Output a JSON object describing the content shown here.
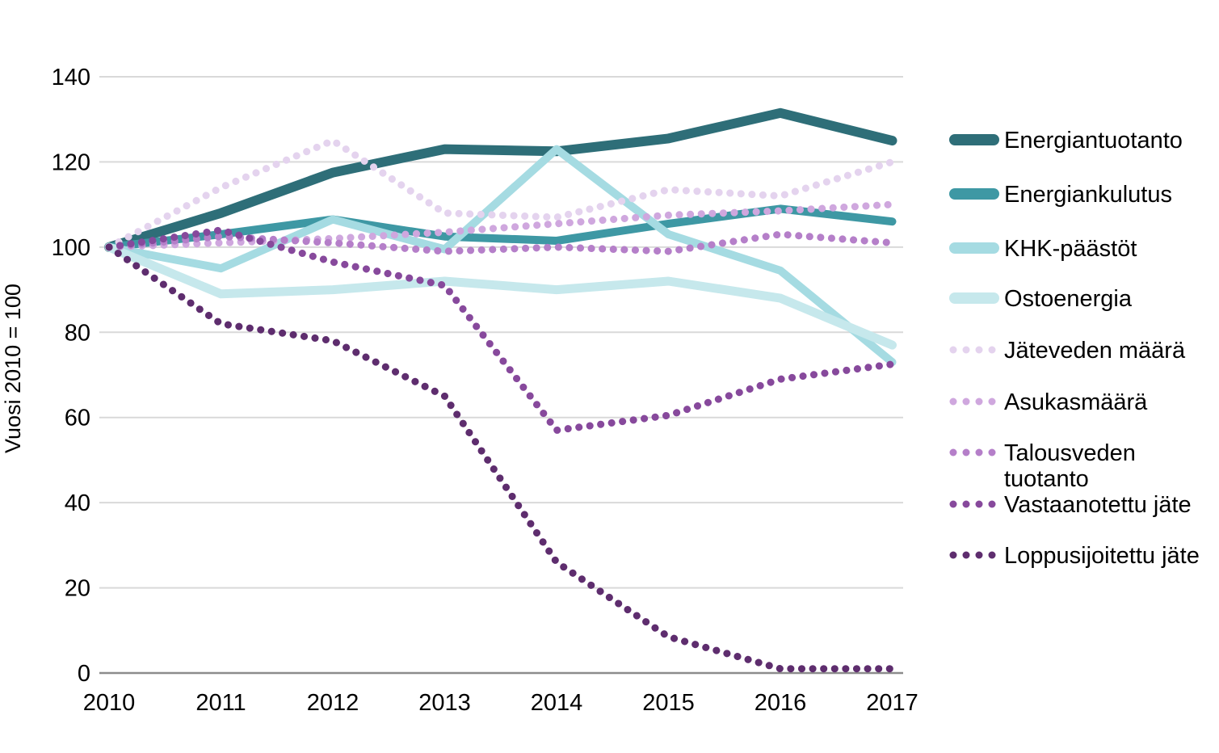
{
  "y_axis_title": "Vuosi 2010 = 100",
  "colors": {
    "gridline": "#d9d9d9",
    "axis_line": "#8c8c8c",
    "text": "#000000",
    "background": "#ffffff"
  },
  "chart_data": {
    "type": "line",
    "title": "",
    "xlabel": "",
    "ylabel": "Vuosi 2010 = 100",
    "categories": [
      "2010",
      "2011",
      "2012",
      "2013",
      "2014",
      "2015",
      "2016",
      "2017"
    ],
    "y_ticks": [
      0,
      20,
      40,
      60,
      80,
      100,
      120,
      140
    ],
    "ylim": [
      0,
      140
    ],
    "grid": true,
    "legend_position": "right",
    "series": [
      {
        "name": "Energiantuotanto",
        "color": "#2e6e78",
        "style": "solid",
        "width": 12,
        "values": [
          100,
          108,
          117.5,
          123,
          122.5,
          125.5,
          131.5,
          125
        ]
      },
      {
        "name": "Energiankulutus",
        "color": "#3e98a4",
        "style": "solid",
        "width": 10,
        "values": [
          100,
          103,
          106.5,
          102.5,
          101.5,
          105.5,
          109,
          106
        ]
      },
      {
        "name": "KHK-päästöt",
        "color": "#a5dbe2",
        "style": "solid",
        "width": 10,
        "values": [
          100,
          95,
          106.5,
          99.5,
          123,
          103,
          94.5,
          73
        ]
      },
      {
        "name": "Ostoenergia",
        "color": "#c6e8ec",
        "style": "solid",
        "width": 11,
        "values": [
          100,
          89,
          90,
          92,
          90,
          92,
          88,
          77
        ]
      },
      {
        "name": "Jäteveden määrä",
        "color": "#e4d3ee",
        "style": "dotted",
        "width": 9,
        "values": [
          100,
          114,
          125,
          108,
          107,
          113.5,
          112,
          120
        ]
      },
      {
        "name": "Asukasmäärä",
        "color": "#cfa7de",
        "style": "dotted",
        "width": 9,
        "values": [
          100,
          101,
          102,
          103.5,
          105.5,
          107.5,
          108.5,
          110
        ]
      },
      {
        "name": "Talousveden tuotanto",
        "color": "#b57fc9",
        "style": "dotted",
        "width": 9,
        "values": [
          100,
          102.5,
          101,
          99,
          100,
          99,
          103,
          101
        ],
        "label_lines": [
          "Talousveden",
          "tuotanto"
        ]
      },
      {
        "name": "Vastaanotettu jäte",
        "color": "#87499c",
        "style": "dotted",
        "width": 9,
        "values": [
          100,
          104,
          96.5,
          91,
          57,
          60.5,
          69,
          72.5
        ]
      },
      {
        "name": "Loppusijoitettu jäte",
        "color": "#5e2d6e",
        "style": "dotted",
        "width": 9,
        "values": [
          100,
          82,
          78,
          65,
          26,
          8.5,
          1,
          1
        ]
      }
    ]
  }
}
